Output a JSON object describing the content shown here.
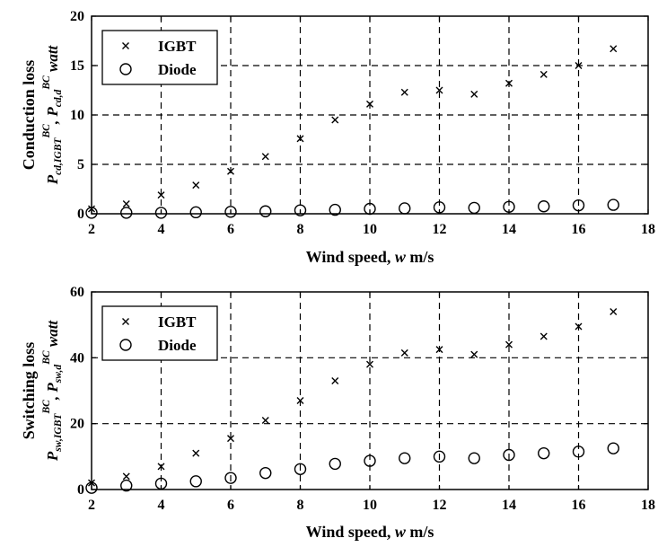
{
  "chart_data": [
    {
      "type": "scatter",
      "title": "",
      "xlabel": "Wind speed, w m/s",
      "ylabel_line1": "Conduction loss",
      "ylabel_line2": "P_{cd,IGBT}^{BC}, P_{cd,d}^{BC} watt",
      "xlim": [
        2,
        18
      ],
      "ylim": [
        0,
        20
      ],
      "xticks": [
        2,
        4,
        6,
        8,
        10,
        12,
        14,
        16,
        18
      ],
      "yticks": [
        0,
        5,
        10,
        15,
        20
      ],
      "grid": true,
      "legend_position": "top-left",
      "series": [
        {
          "name": "IGBT",
          "marker": "x",
          "x": [
            2,
            3,
            4,
            5,
            6,
            7,
            8,
            9,
            10,
            11,
            12,
            13,
            14,
            15,
            16,
            17
          ],
          "y": [
            0.5,
            1.0,
            1.9,
            2.9,
            4.3,
            5.8,
            7.6,
            9.5,
            11.1,
            12.3,
            12.5,
            12.1,
            13.2,
            14.1,
            15.0,
            16.7
          ]
        },
        {
          "name": "Diode",
          "marker": "o",
          "x": [
            2,
            3,
            4,
            5,
            6,
            7,
            8,
            9,
            10,
            11,
            12,
            13,
            14,
            15,
            16,
            17
          ],
          "y": [
            0.1,
            0.1,
            0.1,
            0.15,
            0.2,
            0.25,
            0.35,
            0.4,
            0.5,
            0.55,
            0.65,
            0.6,
            0.7,
            0.75,
            0.85,
            0.9
          ]
        }
      ]
    },
    {
      "type": "scatter",
      "title": "",
      "xlabel": "Wind speed, w m/s",
      "ylabel_line1": "Switching loss",
      "ylabel_line2": "P_{sw,IGBT}^{BC}, P_{sw,d}^{BC} watt",
      "xlim": [
        2,
        18
      ],
      "ylim": [
        0,
        60
      ],
      "xticks": [
        2,
        4,
        6,
        8,
        10,
        12,
        14,
        16,
        18
      ],
      "yticks": [
        0,
        20,
        40,
        60
      ],
      "grid": true,
      "legend_position": "top-left",
      "series": [
        {
          "name": "IGBT",
          "marker": "x",
          "x": [
            2,
            3,
            4,
            5,
            6,
            7,
            8,
            9,
            10,
            11,
            12,
            13,
            14,
            15,
            16,
            17
          ],
          "y": [
            2,
            4,
            7,
            11,
            15.5,
            21,
            27,
            33,
            38,
            41.5,
            42.5,
            41,
            44,
            46.5,
            49.5,
            54
          ]
        },
        {
          "name": "Diode",
          "marker": "o",
          "x": [
            2,
            3,
            4,
            5,
            6,
            7,
            8,
            9,
            10,
            11,
            12,
            13,
            14,
            15,
            16,
            17
          ],
          "y": [
            0.5,
            1.2,
            1.8,
            2.5,
            3.5,
            5,
            6.2,
            7.8,
            8.7,
            9.5,
            10,
            9.5,
            10.5,
            11,
            11.5,
            12.5
          ]
        }
      ]
    }
  ]
}
